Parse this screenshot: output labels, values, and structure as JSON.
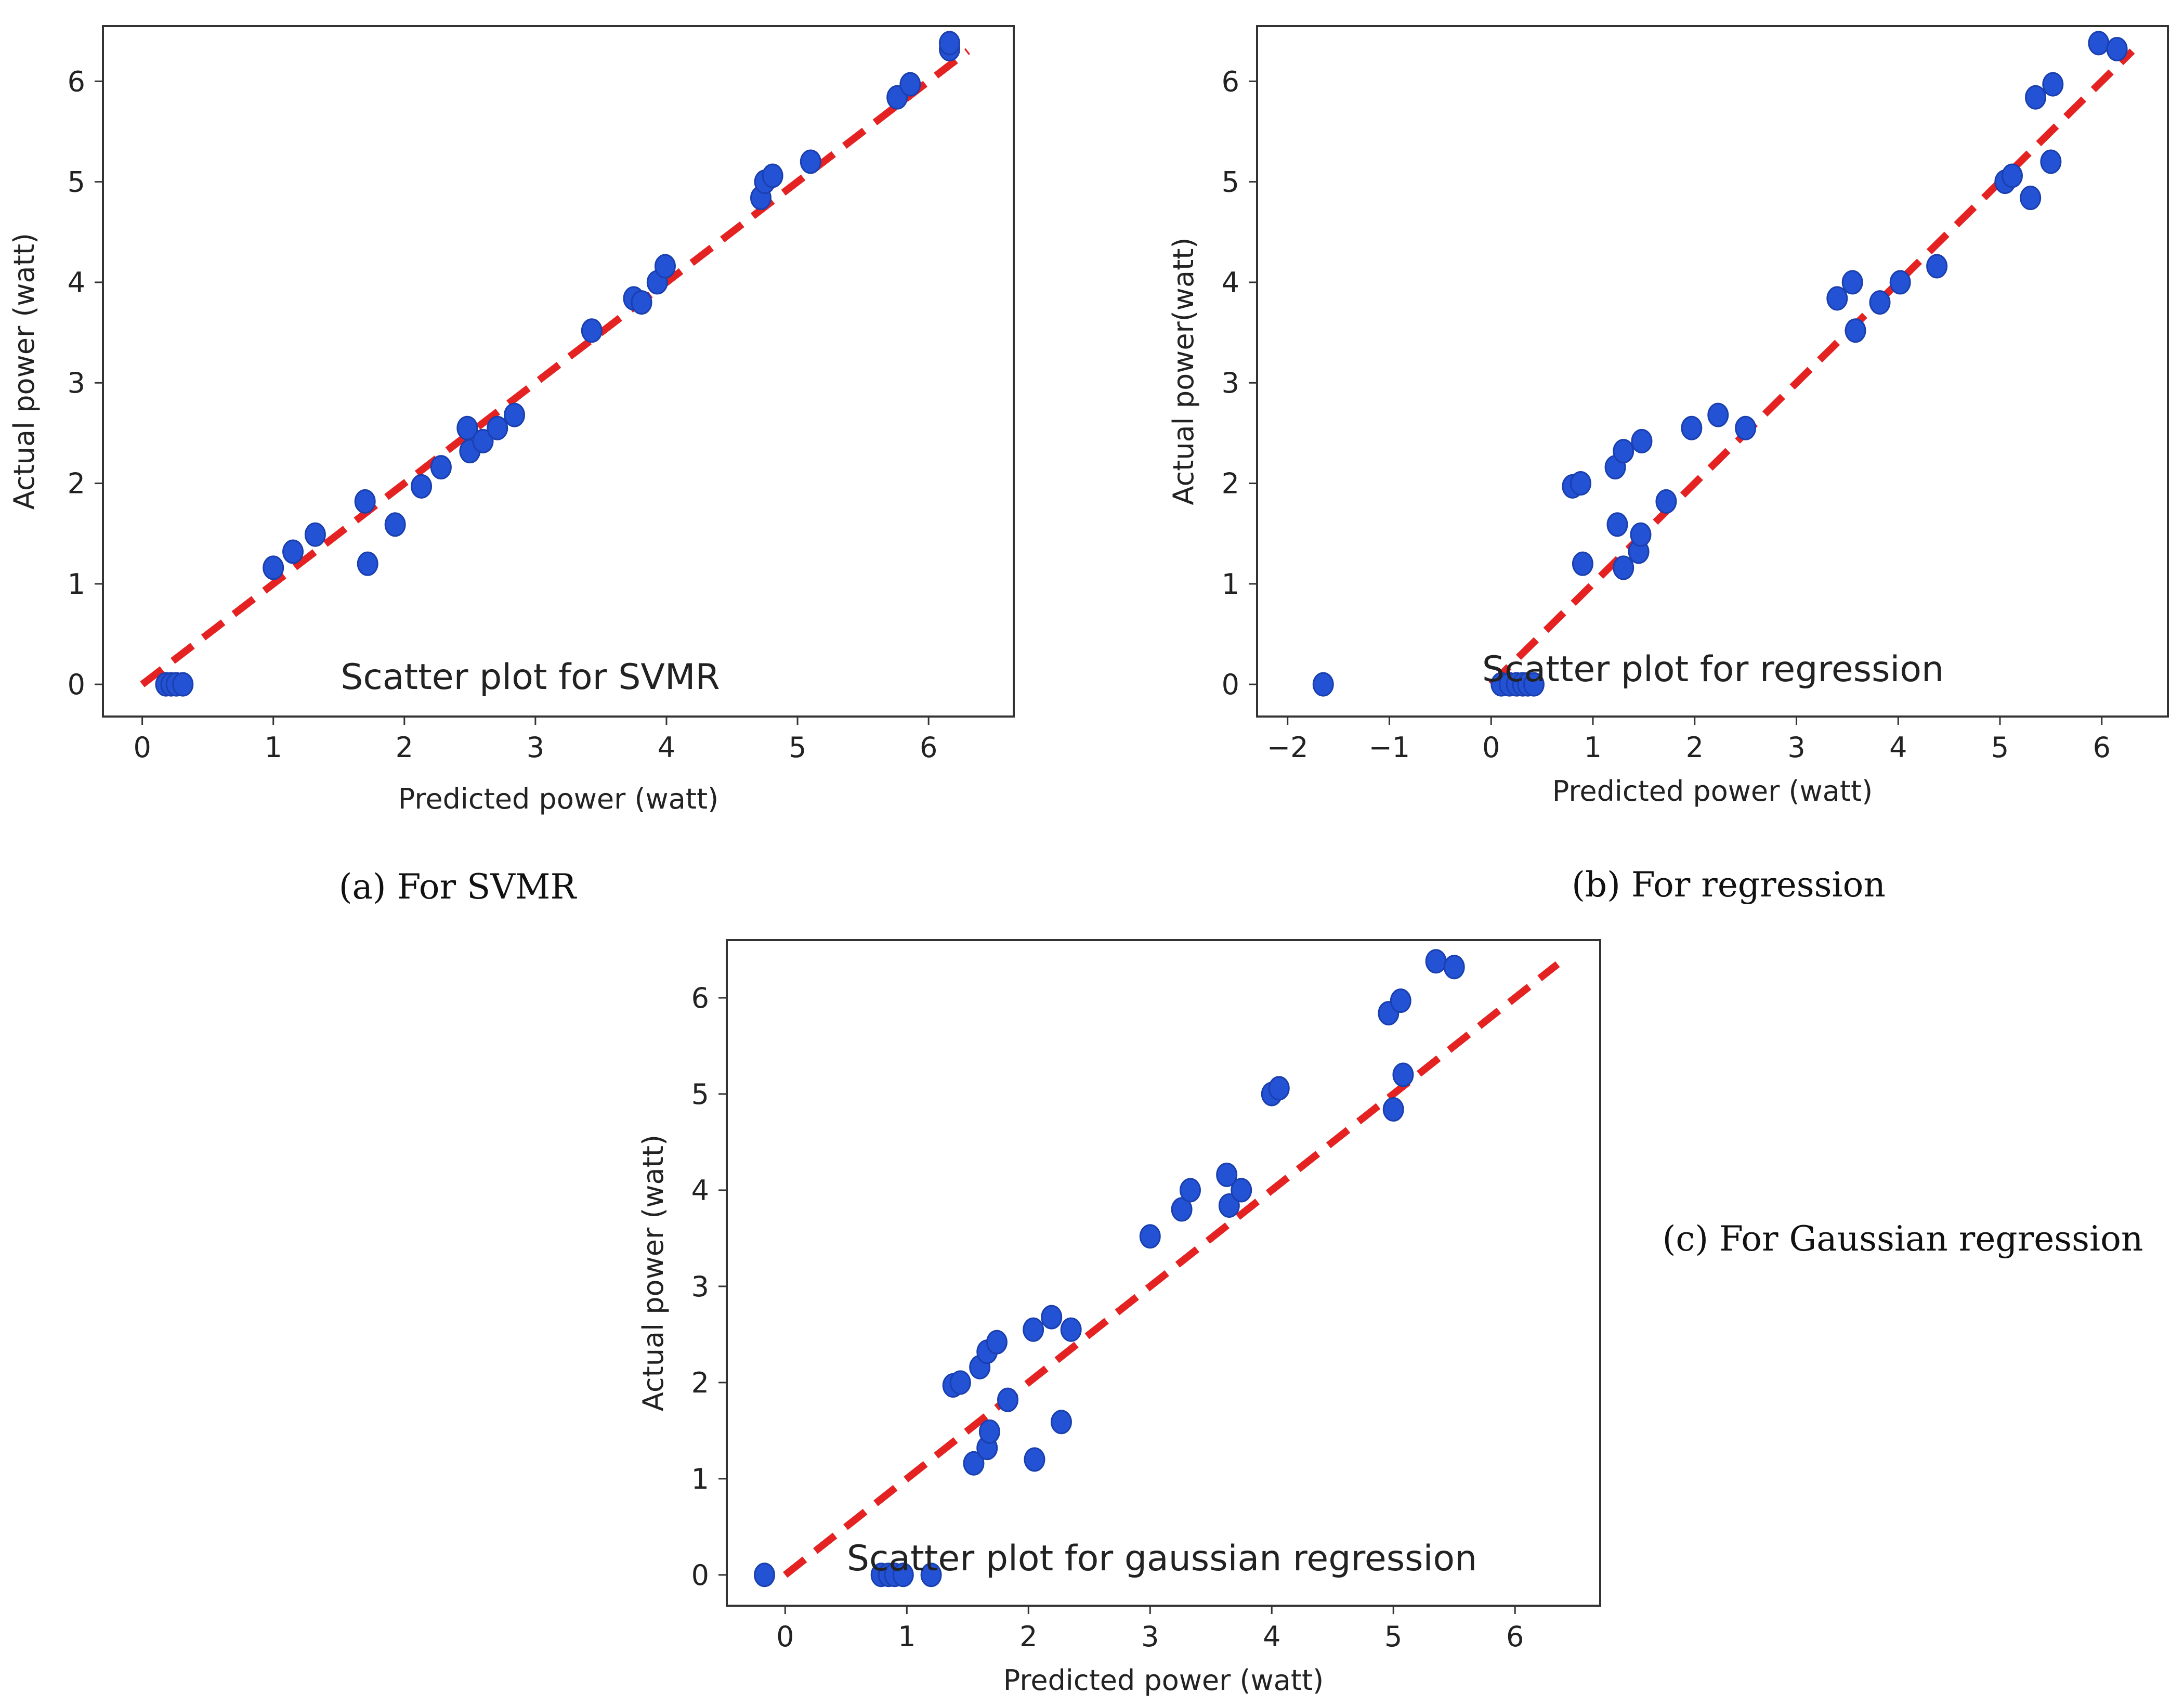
{
  "chart_data": [
    {
      "type": "scatter",
      "id": "a",
      "title": "Scatter plot for SVMR",
      "xlabel": "Predicted power (watt)",
      "ylabel": "Actual power (watt)",
      "caption": "(a) For SVMR",
      "xlim": [
        -0.3,
        6.65
      ],
      "ylim": [
        -0.32,
        6.55
      ],
      "xticks": [
        0,
        1,
        2,
        3,
        4,
        5,
        6
      ],
      "yticks": [
        0,
        1,
        2,
        3,
        4,
        5,
        6
      ],
      "fit_line": {
        "x": [
          0,
          6.3
        ],
        "y": [
          0,
          6.3
        ]
      },
      "points": [
        [
          0.18,
          0.0
        ],
        [
          0.22,
          0.0
        ],
        [
          0.26,
          0.0
        ],
        [
          0.31,
          0.0
        ],
        [
          1.0,
          1.16
        ],
        [
          1.15,
          1.32
        ],
        [
          1.32,
          1.49
        ],
        [
          1.7,
          1.82
        ],
        [
          1.72,
          1.2
        ],
        [
          1.93,
          1.59
        ],
        [
          2.13,
          1.97
        ],
        [
          2.28,
          2.16
        ],
        [
          2.48,
          2.55
        ],
        [
          2.5,
          2.32
        ],
        [
          2.6,
          2.42
        ],
        [
          2.71,
          2.55
        ],
        [
          2.84,
          2.68
        ],
        [
          3.43,
          3.52
        ],
        [
          3.75,
          3.84
        ],
        [
          3.81,
          3.8
        ],
        [
          3.93,
          4.0
        ],
        [
          3.99,
          4.16
        ],
        [
          4.72,
          4.84
        ],
        [
          4.75,
          5.0
        ],
        [
          4.81,
          5.06
        ],
        [
          5.1,
          5.2
        ],
        [
          5.76,
          5.84
        ],
        [
          5.86,
          5.97
        ],
        [
          6.16,
          6.32
        ],
        [
          6.16,
          6.38
        ]
      ]
    },
    {
      "type": "scatter",
      "id": "b",
      "title": "Scatter plot for regression",
      "xlabel": "Predicted power (watt)",
      "ylabel": "Actual power(watt)",
      "caption": "(b) For regression",
      "xlim": [
        -2.3,
        6.65
      ],
      "ylim": [
        -0.32,
        6.55
      ],
      "xticks": [
        -2,
        -1,
        0,
        1,
        2,
        3,
        4,
        5,
        6
      ],
      "xtick_labels": [
        "−2",
        "−1",
        "0",
        "1",
        "2",
        "3",
        "4",
        "5",
        "6"
      ],
      "yticks": [
        0,
        1,
        2,
        3,
        4,
        5,
        6
      ],
      "fit_line": {
        "x": [
          0,
          6.3
        ],
        "y": [
          0,
          6.3
        ]
      },
      "points": [
        [
          -1.65,
          0.0
        ],
        [
          0.1,
          0.0
        ],
        [
          0.18,
          0.0
        ],
        [
          0.25,
          0.0
        ],
        [
          0.31,
          0.0
        ],
        [
          0.36,
          0.0
        ],
        [
          0.42,
          0.0
        ],
        [
          0.8,
          1.97
        ],
        [
          0.88,
          2.0
        ],
        [
          0.9,
          1.2
        ],
        [
          1.22,
          2.16
        ],
        [
          1.24,
          1.59
        ],
        [
          1.3,
          2.32
        ],
        [
          1.3,
          1.16
        ],
        [
          1.45,
          1.32
        ],
        [
          1.47,
          1.49
        ],
        [
          1.48,
          2.42
        ],
        [
          1.72,
          1.82
        ],
        [
          1.97,
          2.55
        ],
        [
          2.23,
          2.68
        ],
        [
          2.5,
          2.55
        ],
        [
          3.4,
          3.84
        ],
        [
          3.55,
          4.0
        ],
        [
          3.58,
          3.52
        ],
        [
          3.82,
          3.8
        ],
        [
          4.02,
          4.0
        ],
        [
          4.38,
          4.16
        ],
        [
          5.05,
          5.0
        ],
        [
          5.12,
          5.06
        ],
        [
          5.3,
          4.84
        ],
        [
          5.35,
          5.84
        ],
        [
          5.5,
          5.2
        ],
        [
          5.52,
          5.97
        ],
        [
          5.97,
          6.38
        ],
        [
          6.15,
          6.32
        ]
      ]
    },
    {
      "type": "scatter",
      "id": "c",
      "title": "Scatter plot for gaussian regression",
      "xlabel": "Predicted power (watt)",
      "ylabel": "Actual power (watt)",
      "caption": "(c) For Gaussian regression",
      "xlim": [
        -0.48,
        6.7
      ],
      "ylim": [
        -0.32,
        6.6
      ],
      "xticks": [
        0,
        1,
        2,
        3,
        4,
        5,
        6
      ],
      "yticks": [
        0,
        1,
        2,
        3,
        4,
        5,
        6
      ],
      "fit_line": {
        "x": [
          0,
          6.35
        ],
        "y": [
          0,
          6.35
        ]
      },
      "points": [
        [
          -0.17,
          0.0
        ],
        [
          0.79,
          0.0
        ],
        [
          0.85,
          0.0
        ],
        [
          0.9,
          0.0
        ],
        [
          0.97,
          0.0
        ],
        [
          1.2,
          0.0
        ],
        [
          1.38,
          1.97
        ],
        [
          1.44,
          2.0
        ],
        [
          1.55,
          1.16
        ],
        [
          1.6,
          2.16
        ],
        [
          1.66,
          2.32
        ],
        [
          1.66,
          1.32
        ],
        [
          1.68,
          1.49
        ],
        [
          1.74,
          2.42
        ],
        [
          1.83,
          1.82
        ],
        [
          2.04,
          2.55
        ],
        [
          2.05,
          1.2
        ],
        [
          2.19,
          2.68
        ],
        [
          2.27,
          1.59
        ],
        [
          2.35,
          2.55
        ],
        [
          3.0,
          3.52
        ],
        [
          3.26,
          3.8
        ],
        [
          3.33,
          4.0
        ],
        [
          3.63,
          4.16
        ],
        [
          3.65,
          3.84
        ],
        [
          3.75,
          4.0
        ],
        [
          4.0,
          5.0
        ],
        [
          4.06,
          5.06
        ],
        [
          4.96,
          5.84
        ],
        [
          5.0,
          4.84
        ],
        [
          5.06,
          5.97
        ],
        [
          5.08,
          5.2
        ],
        [
          5.35,
          6.38
        ],
        [
          5.5,
          6.32
        ]
      ]
    }
  ],
  "colors": {
    "point": "#2452d4",
    "point_edge": "#1a3fae",
    "fit_line": "#e52222",
    "axes": "#333333"
  }
}
